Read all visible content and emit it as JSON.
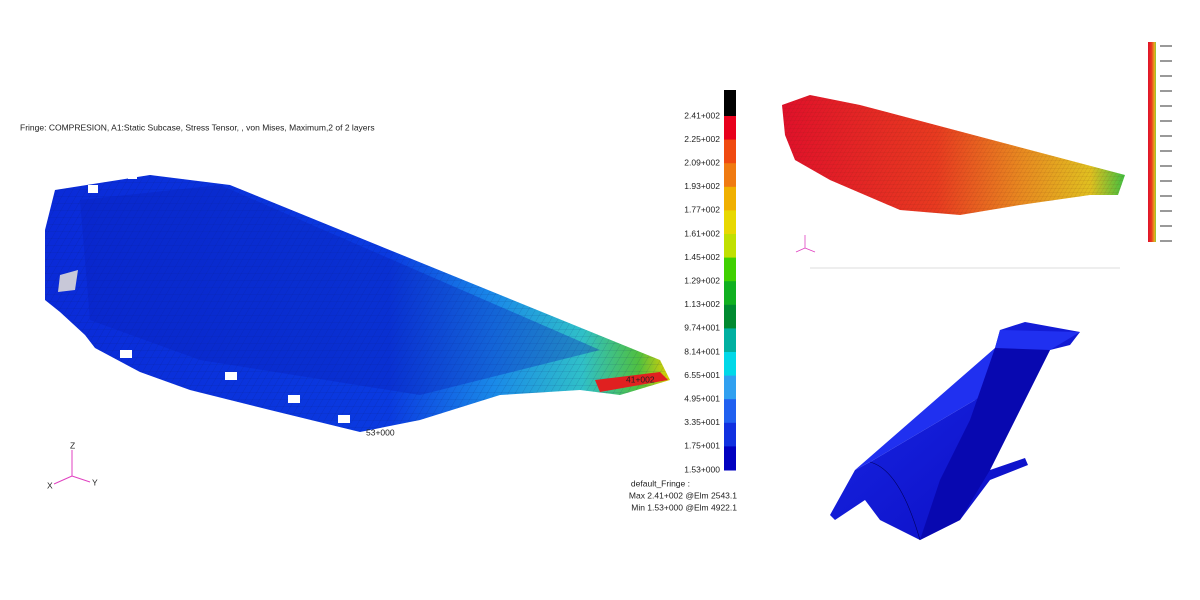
{
  "main_view": {
    "title": "Fringe: COMPRESION, A1:Static Subcase, Stress Tensor, , von Mises, Maximum,2 of 2 layers",
    "max_marker": "41+002",
    "min_marker": "53+000",
    "triad": {
      "z": "Z",
      "x": "X",
      "y": "Y"
    }
  },
  "legend": {
    "labels": [
      "2.41+002",
      "2.25+002",
      "2.09+002",
      "1.93+002",
      "1.77+002",
      "1.61+002",
      "1.45+002",
      "1.29+002",
      "1.13+002",
      "9.74+001",
      "8.14+001",
      "6.55+001",
      "4.95+001",
      "3.35+001",
      "1.75+001",
      "1.53+000"
    ],
    "colors": [
      "#000000",
      "#e8001c",
      "#f04a10",
      "#f07a10",
      "#f0b000",
      "#e8d800",
      "#c0e000",
      "#40d000",
      "#10b020",
      "#008a30",
      "#00b0a0",
      "#00d8e8",
      "#30a0f0",
      "#2060f0",
      "#1030e0",
      "#0000c0"
    ],
    "footer": [
      "default_Fringe :",
      "Max 2.41+002 @Elm 2543.1",
      "Min 1.53+000 @Elm 4922.1"
    ]
  }
}
